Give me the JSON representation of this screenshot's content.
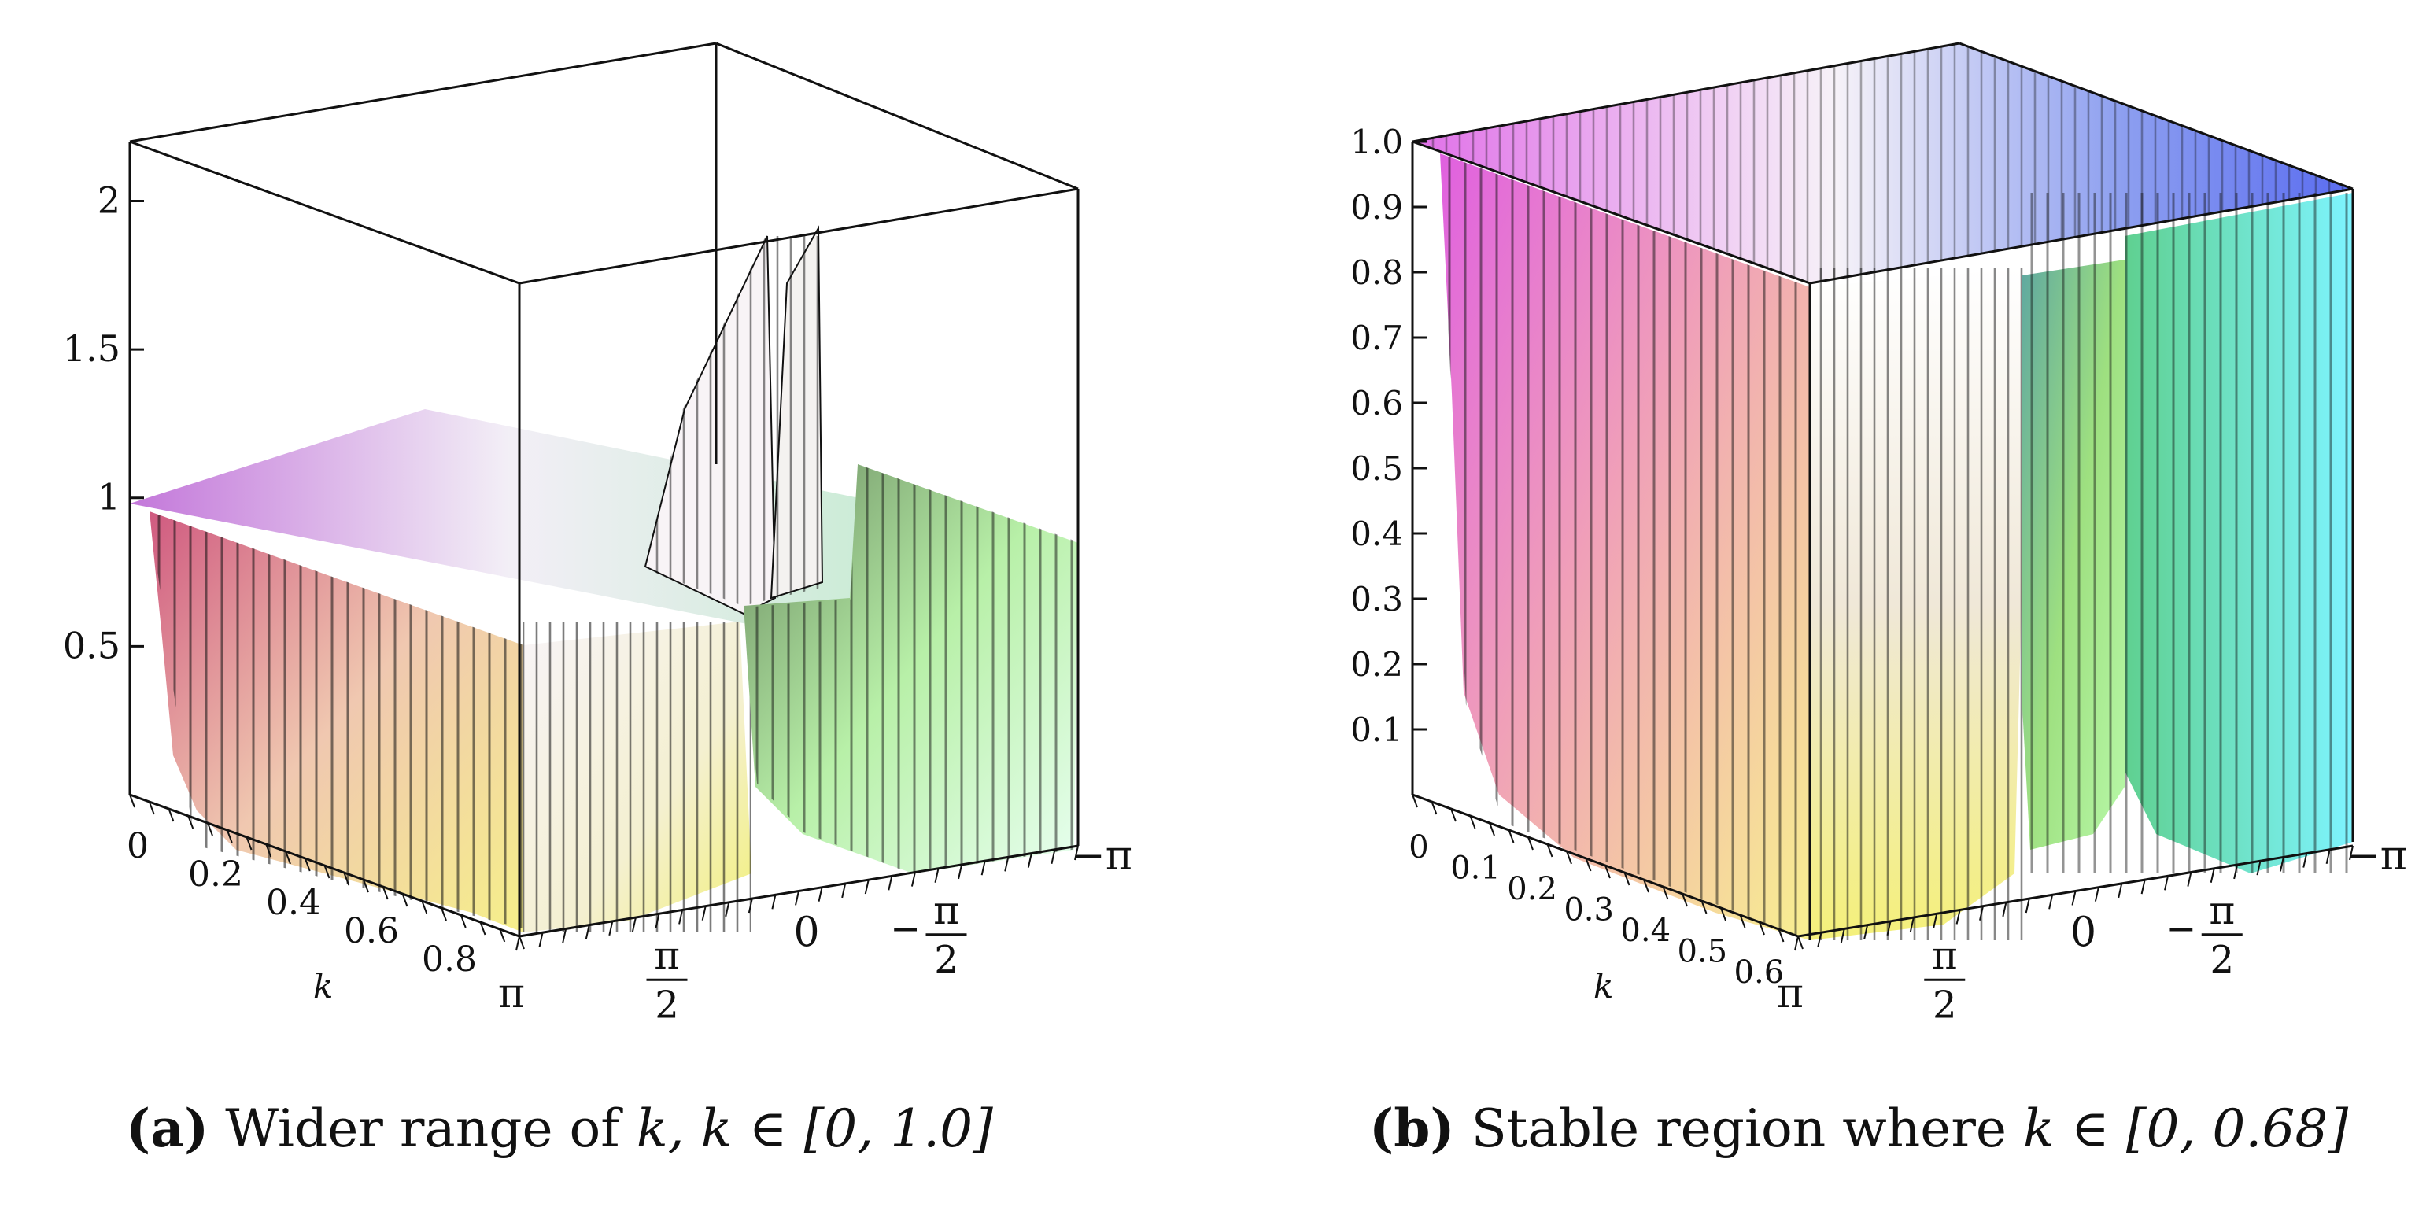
{
  "colors": {
    "pink": "#e060d8",
    "magenta": "#c050d0",
    "lavender": "#9a8ef0",
    "blue": "#4a6cf0",
    "cyan": "#7ef4ff",
    "green": "#6ee070",
    "yellow": "#f0f070",
    "peach": "#f0b890",
    "white": "#f6f4f6",
    "grid": "#111111"
  },
  "chart_data": [
    {
      "id": "a",
      "type": "surface3d",
      "caption_label": "(a)",
      "caption_text": "Wider range of",
      "caption_math": "k, k ∈ [0, 1.0]",
      "z_ticks": [
        "0.5",
        "1",
        "1.5",
        "2"
      ],
      "k_ticks": [
        "0",
        "0.2",
        "0.4",
        "0.6",
        "0.8"
      ],
      "k_axis_label": "k",
      "theta_ticks": [
        "π",
        "π/2",
        "0",
        "−π/2",
        "−π"
      ],
      "zlim": [
        0,
        2.2
      ],
      "klim": [
        0,
        1.0
      ],
      "thetalim": [
        "-π",
        "π"
      ],
      "plateau_value": 1.0,
      "peak_value": 2.1,
      "peak_location": "θ ≈ 0, k near 1.0"
    },
    {
      "id": "b",
      "type": "surface3d",
      "caption_label": "(b)",
      "caption_text": "Stable region where",
      "caption_math": "k ∈ [0, 0.68]",
      "z_ticks": [
        "0.1",
        "0.2",
        "0.3",
        "0.4",
        "0.5",
        "0.6",
        "0.7",
        "0.8",
        "0.9",
        "1.0"
      ],
      "k_ticks": [
        "0",
        "0.1",
        "0.2",
        "0.3",
        "0.4",
        "0.5",
        "0.6"
      ],
      "k_axis_label": "k",
      "theta_ticks": [
        "π",
        "π/2",
        "0",
        "−π/2",
        "−π"
      ],
      "zlim": [
        0,
        1.0
      ],
      "klim": [
        0,
        0.68
      ],
      "thetalim": [
        "-π",
        "π"
      ],
      "plateau_value": 1.0
    }
  ]
}
